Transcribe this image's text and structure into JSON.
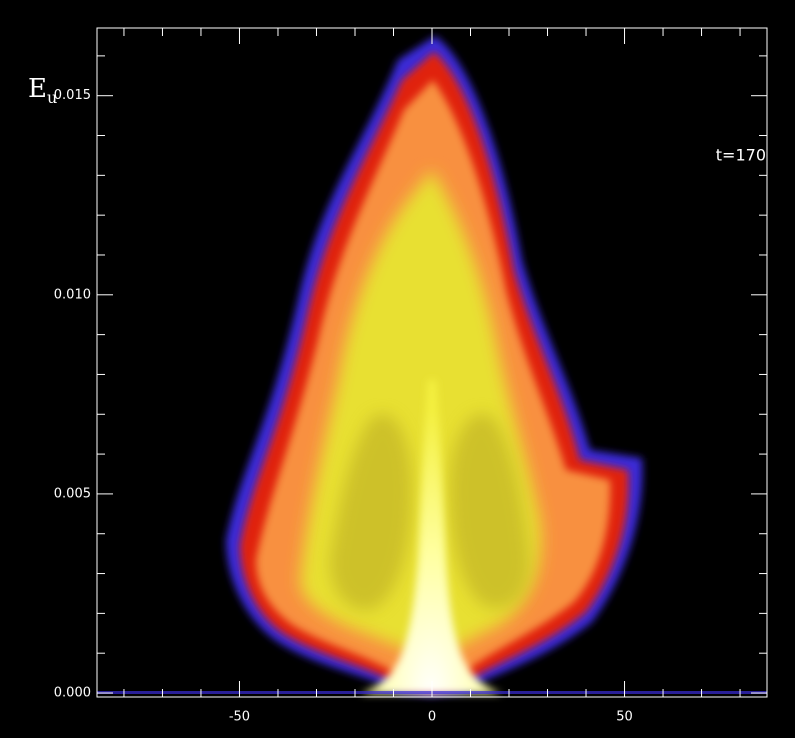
{
  "chart_data": {
    "type": "density",
    "ylabel": "E",
    "ylabel_subscript": "u",
    "annotation": "t=170",
    "xlim": [
      -87,
      87
    ],
    "xticks": [
      -50,
      0,
      50
    ],
    "xminorticks": [
      -80,
      -70,
      -60,
      -40,
      -30,
      -20,
      -10,
      10,
      20,
      30,
      40,
      60,
      70,
      80
    ],
    "ylim": [
      -0.0001,
      0.0167
    ],
    "yticks": [
      {
        "value": 0,
        "label": "0.000"
      },
      {
        "value": 0.005,
        "label": "0.005"
      },
      {
        "value": 0.01,
        "label": "0.010"
      },
      {
        "value": 0.015,
        "label": "0.015"
      }
    ],
    "yminorticks": [
      0.001,
      0.002,
      0.003,
      0.004,
      0.006,
      0.007,
      0.008,
      0.009,
      0.011,
      0.012,
      0.013,
      0.014,
      0.016
    ]
  }
}
